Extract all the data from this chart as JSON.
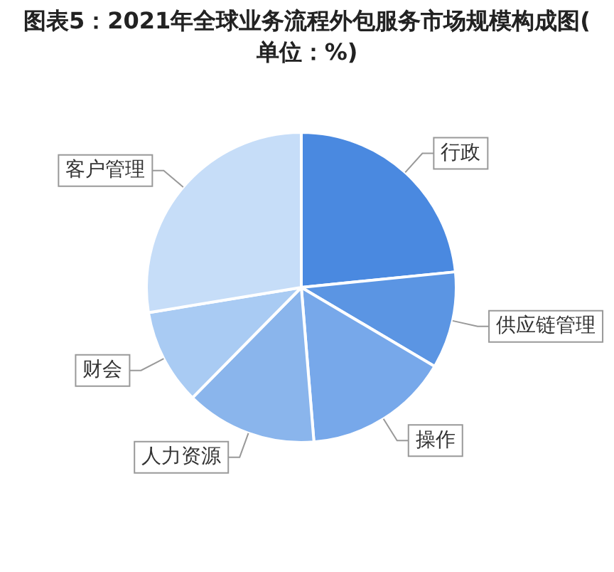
{
  "chart_data": {
    "type": "pie",
    "title": "图表5：2021年全球业务流程外包服务市场规模构成图(单位：%)",
    "categories": [
      "行政",
      "供应链管理",
      "操作",
      "人力资源",
      "财会",
      "客户管理"
    ],
    "values": [
      23.4,
      10.1,
      15.2,
      13.7,
      10.0,
      27.6
    ],
    "colors": [
      "#4a89e0",
      "#5b95e3",
      "#77a8ea",
      "#8ab5ec",
      "#a9cbf3",
      "#c6ddf8"
    ],
    "legend": false
  }
}
